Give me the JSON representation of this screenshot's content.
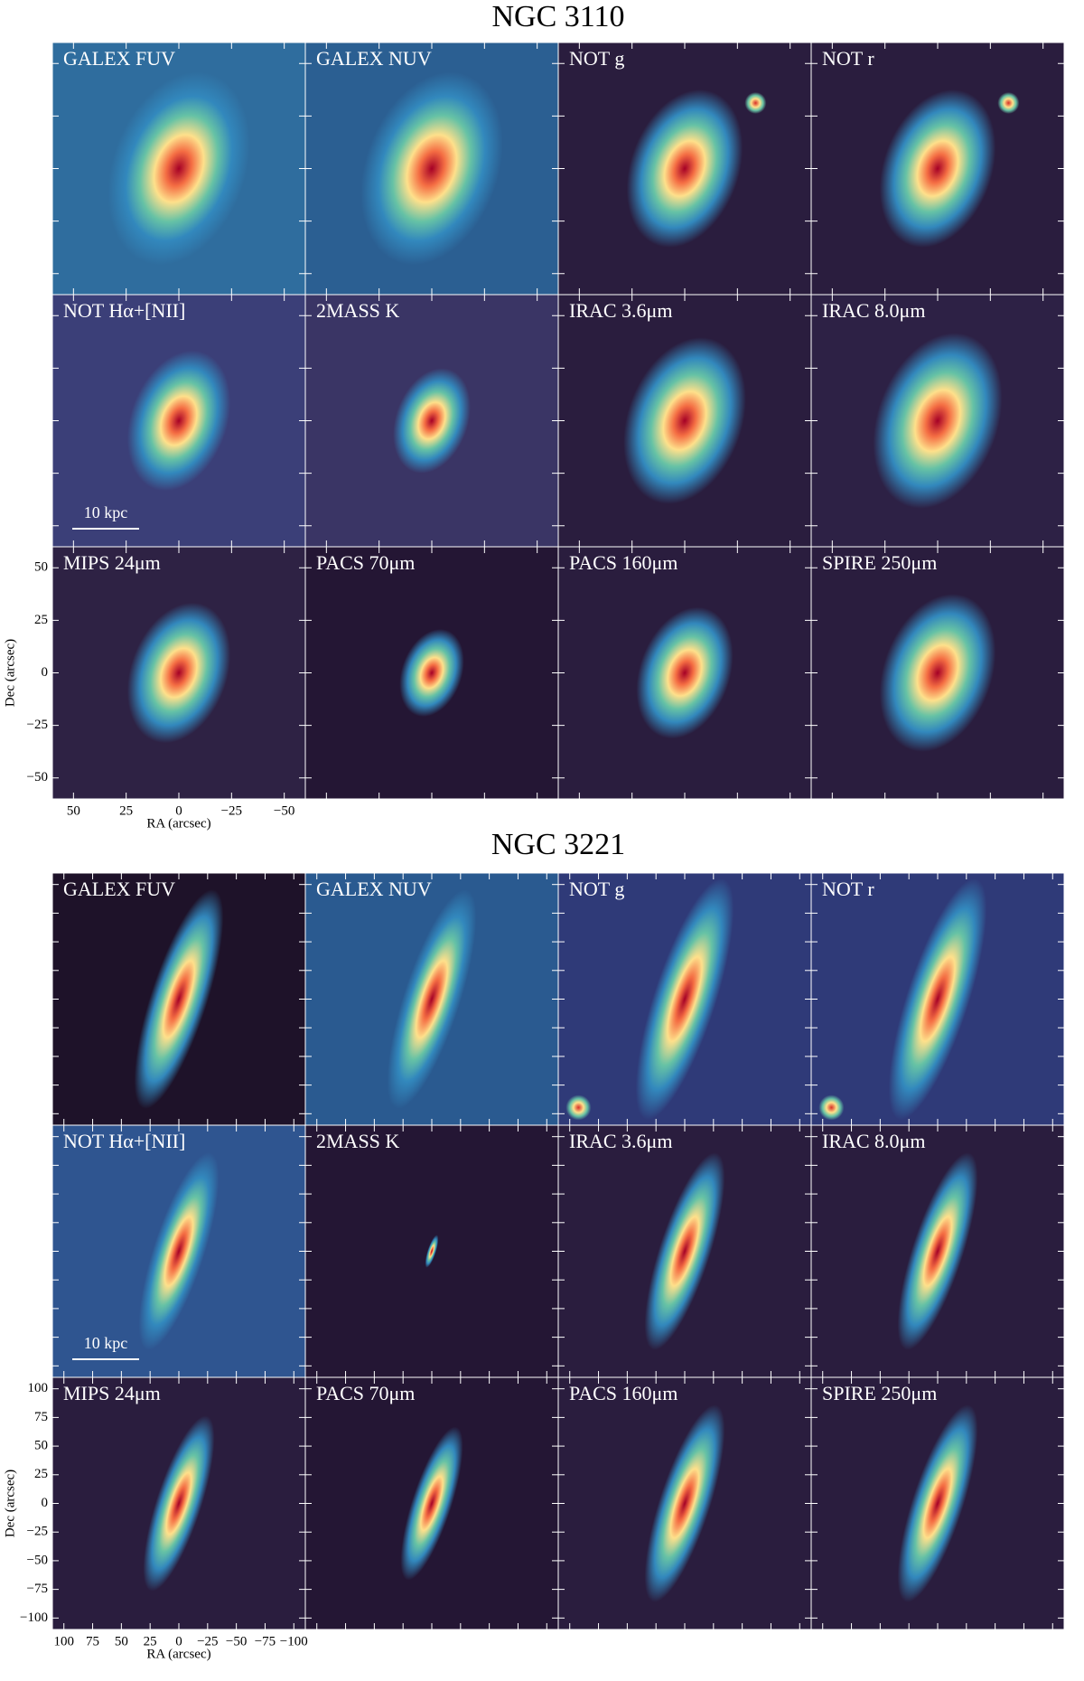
{
  "figures": [
    {
      "title": "NGC 3110",
      "panels": [
        "GALEX FUV",
        "GALEX NUV",
        "NOT g",
        "NOT r",
        "NOT Hα+[NII]",
        "2MASS K",
        "IRAC 3.6μm",
        "IRAC 8.0μm",
        "MIPS 24μm",
        "PACS 70μm",
        "PACS 160μm",
        "SPIRE 250μm"
      ],
      "scale_bar": "10 kpc",
      "axes": {
        "xlabel": "RA (arcsec)",
        "ylabel": "Dec (arcsec)",
        "xlim": [
          60,
          -60
        ],
        "ylim": [
          -60,
          60
        ],
        "xticks": [
          50,
          25,
          0,
          {
            "value": -25,
            "label": "−25"
          },
          {
            "value": -50,
            "label": "−50"
          }
        ],
        "yticks": [
          50,
          25,
          0,
          {
            "value": -25,
            "label": "−25"
          },
          {
            "value": -50,
            "label": "−50"
          }
        ]
      }
    },
    {
      "title": "NGC 3221",
      "panels": [
        "GALEX FUV",
        "GALEX NUV",
        "NOT g",
        "NOT r",
        "NOT Hα+[NII]",
        "2MASS K",
        "IRAC 3.6μm",
        "IRAC 8.0μm",
        "MIPS 24μm",
        "PACS 70μm",
        "PACS 160μm",
        "SPIRE 250μm"
      ],
      "scale_bar": "10 kpc",
      "axes": {
        "xlabel": "RA (arcsec)",
        "ylabel": "Dec (arcsec)",
        "xlim": [
          110,
          -110
        ],
        "ylim": [
          -110,
          110
        ],
        "xticks": [
          100,
          75,
          50,
          25,
          0,
          {
            "value": -25,
            "label": "−25"
          },
          {
            "value": -50,
            "label": "−50"
          },
          {
            "value": -75,
            "label": "−75"
          },
          {
            "value": -100,
            "label": "−100"
          }
        ],
        "yticks": [
          100,
          75,
          50,
          25,
          0,
          {
            "value": -25,
            "label": "−25"
          },
          {
            "value": -50,
            "label": "−50"
          },
          {
            "value": -75,
            "label": "−75"
          },
          {
            "value": -100,
            "label": "−100"
          }
        ]
      }
    }
  ]
}
